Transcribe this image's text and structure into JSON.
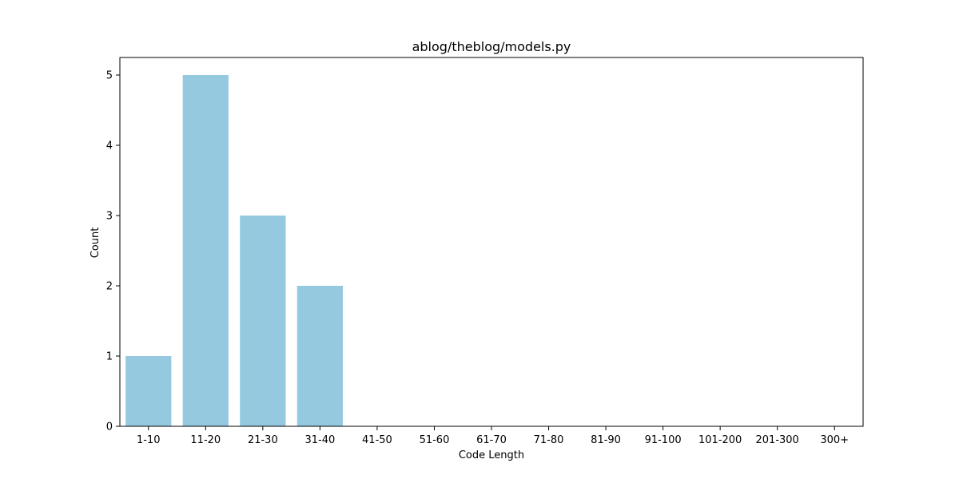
{
  "chart_data": {
    "type": "bar",
    "title": "ablog/theblog/models.py",
    "xlabel": "Code Length",
    "ylabel": "Count",
    "categories": [
      "1-10",
      "11-20",
      "21-30",
      "31-40",
      "41-50",
      "51-60",
      "61-70",
      "71-80",
      "81-90",
      "91-100",
      "101-200",
      "201-300",
      "300+"
    ],
    "values": [
      1,
      5,
      3,
      2,
      0,
      0,
      0,
      0,
      0,
      0,
      0,
      0,
      0
    ],
    "ylim": [
      0,
      5.25
    ],
    "yticks": [
      0,
      1,
      2,
      3,
      4,
      5
    ],
    "grid": false,
    "bar_color": "#95c9df"
  }
}
